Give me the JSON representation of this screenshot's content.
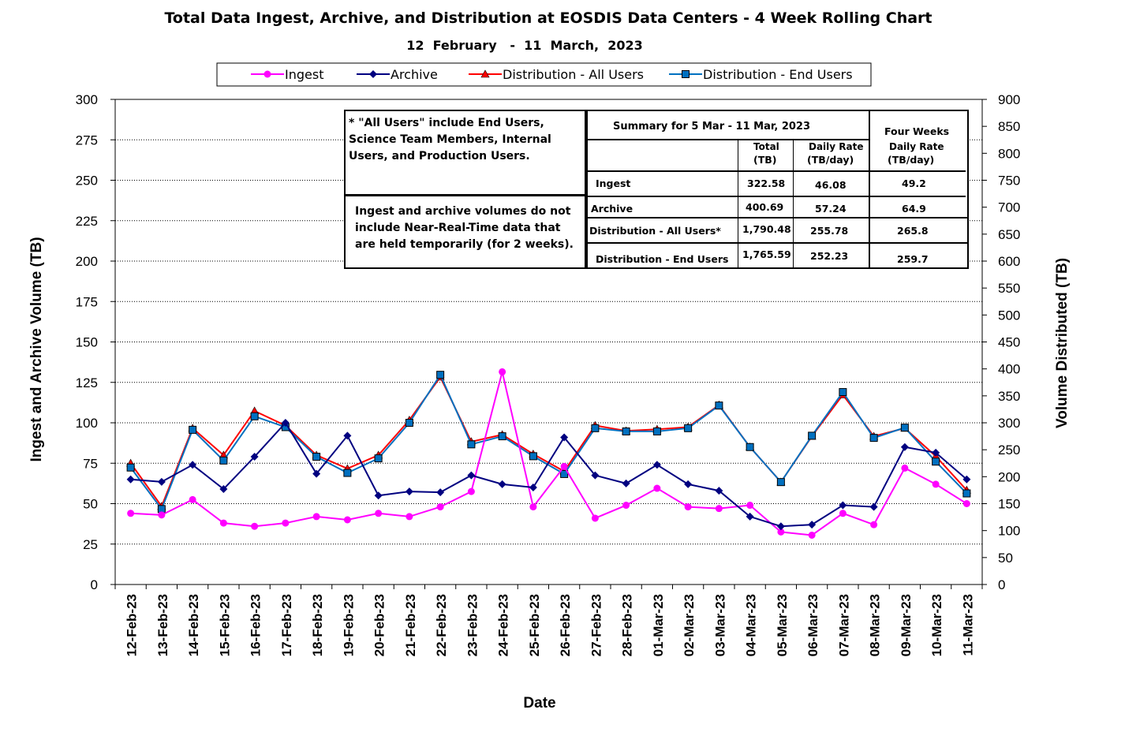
{
  "chart_data": {
    "type": "line",
    "title": "Total Data Ingest, Archive, and  Distribution at EOSDIS Data Centers - 4 Week Rolling Chart",
    "subtitle": "12  February   -  11  March,  2023",
    "xlabel": "Date",
    "ylabel": "Ingest and Archive Volume (TB)",
    "y2label": "Volume Distributed (TB)",
    "ylim": [
      0,
      300
    ],
    "yticks": [
      0,
      25,
      50,
      75,
      100,
      125,
      150,
      175,
      200,
      225,
      250,
      275,
      300
    ],
    "y2lim": [
      0,
      900
    ],
    "y2ticks": [
      0,
      50,
      100,
      150,
      200,
      250,
      300,
      350,
      400,
      450,
      500,
      550,
      600,
      650,
      700,
      750,
      800,
      850,
      900
    ],
    "grid": "horizontal-dotted",
    "legend_position": "top",
    "categories": [
      "12-Feb-23",
      "13-Feb-23",
      "14-Feb-23",
      "15-Feb-23",
      "16-Feb-23",
      "17-Feb-23",
      "18-Feb-23",
      "19-Feb-23",
      "20-Feb-23",
      "21-Feb-23",
      "22-Feb-23",
      "23-Feb-23",
      "24-Feb-23",
      "25-Feb-23",
      "26-Feb-23",
      "27-Feb-23",
      "28-Feb-23",
      "01-Mar-23",
      "02-Mar-23",
      "03-Mar-23",
      "04-Mar-23",
      "05-Mar-23",
      "06-Mar-23",
      "07-Mar-23",
      "08-Mar-23",
      "09-Mar-23",
      "10-Mar-23",
      "11-Mar-23"
    ],
    "series": [
      {
        "name": "Ingest",
        "axis": "left",
        "color": "#FF00FF",
        "marker": "circle",
        "values": [
          44,
          43,
          52.5,
          38,
          36,
          38,
          42,
          40,
          44,
          42,
          48,
          57.5,
          131.5,
          48,
          73,
          41,
          49,
          59.5,
          48,
          47,
          49,
          32.5,
          30.5,
          44,
          37,
          72,
          62,
          50
        ]
      },
      {
        "name": "Archive",
        "axis": "left",
        "color": "#000080",
        "marker": "diamond",
        "values": [
          65,
          63.5,
          74,
          59,
          79,
          100,
          68.5,
          92,
          55,
          57.5,
          57,
          67.5,
          62,
          60,
          91,
          67.5,
          62.5,
          74,
          62,
          58,
          42,
          36,
          37,
          49,
          48,
          85,
          81.5,
          65
        ]
      },
      {
        "name": "Distribution - All Users",
        "axis": "right",
        "color": "#FF0000",
        "edge": "#000000",
        "marker": "triangle",
        "values": [
          225,
          145,
          290,
          240,
          322,
          295,
          240,
          215,
          240,
          305,
          385,
          265,
          278,
          242,
          210,
          295,
          285,
          288,
          292,
          333,
          255,
          190,
          275,
          352,
          275,
          290,
          238,
          175
        ]
      },
      {
        "name": "Distribution - End Users",
        "axis": "right",
        "color": "#0070C0",
        "edge": "#000000",
        "marker": "square",
        "values": [
          217,
          140,
          287,
          230,
          312,
          292,
          237,
          207,
          234,
          300,
          389,
          260,
          275,
          238,
          205,
          290,
          284,
          284,
          290,
          332,
          255,
          190,
          276,
          357,
          272,
          291,
          228,
          169
        ]
      }
    ]
  },
  "notes": {
    "all_users": "* \"All Users\" include End Users, Science Team Members,  Internal Users, and Production Users.",
    "nrt": "Ingest and archive volumes do not include Near-Real-Time data that are held temporarily (for 2 weeks)."
  },
  "summary": {
    "title": "Summary  for  5  Mar   -  11  Mar,  2023",
    "four_weeks": "Four Weeks",
    "col_total": "Total",
    "col_total_unit": "(TB)",
    "col_daily": "Daily Rate",
    "col_daily_unit": "(TB/day)",
    "col_fw_daily": "Daily Rate",
    "col_fw_daily_unit": "(TB/day)",
    "rows": [
      {
        "label": "Ingest",
        "total": "322.58",
        "daily": "46.08",
        "four_week": "49.2"
      },
      {
        "label": "Archive",
        "total": "400.69",
        "daily": "57.24",
        "four_week": "64.9"
      },
      {
        "label": "Distribution - All Users*",
        "total": "1,790.48",
        "daily": "255.78",
        "four_week": "265.8"
      },
      {
        "label": "Distribution - End Users",
        "total": "1,765.59",
        "daily": "252.23",
        "four_week": "259.7"
      }
    ]
  }
}
